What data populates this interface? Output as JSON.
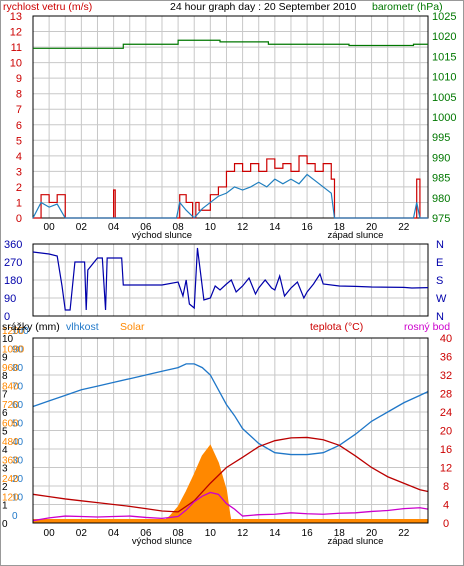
{
  "title": "24 hour graph day : 20 September 2010",
  "time_axis": {
    "hours_labeled": [
      "00",
      "02",
      "04",
      "06",
      "08",
      "10",
      "12",
      "14",
      "16",
      "18",
      "20",
      "22"
    ],
    "sunrise_label": "východ slunce",
    "sunset_label": "západ slunce",
    "sunrise_hour": 7.0,
    "sunset_hour": 19.0
  },
  "colors": {
    "wind": "#cc0000",
    "baro": "#007700",
    "gust_line": "#1f7fbf",
    "dir": "#0000aa",
    "humidity": "#1f77c8",
    "solar": "#ff8800",
    "temp": "#bb0000",
    "dew": "#cc00cc",
    "rain": "#ff8800",
    "frame": "#000000",
    "grid": "#c8c8c8"
  },
  "chart_data": [
    {
      "type": "line",
      "title": "24 hour graph day : 20 September 2010",
      "left_axis_label": "rychlost vetru (m/s)",
      "right_axis_label": "barometr (hPa)",
      "ylim_left": [
        0,
        13
      ],
      "yticks_left": [
        0,
        1,
        2,
        3,
        4,
        5,
        6,
        7,
        8,
        9,
        10,
        11,
        12,
        13
      ],
      "ylim_right": [
        975,
        1025
      ],
      "yticks_right": [
        975,
        980,
        985,
        990,
        995,
        1000,
        1005,
        1010,
        1015,
        1020,
        1025
      ],
      "x_range_hours": [
        -1,
        23.5
      ],
      "series": [
        {
          "kind": "wind_step",
          "x": [
            -1,
            -0.5,
            0,
            0.5,
            1,
            3.8,
            4,
            4.1,
            7.9,
            8.1,
            8.5,
            8.9,
            9.1,
            9.3,
            10,
            10.5,
            11,
            11.5,
            12,
            12.5,
            13,
            13.5,
            14,
            14.5,
            15,
            15.5,
            16,
            16.5,
            17,
            17.5,
            17.7,
            22.6,
            22.8,
            23,
            23.5
          ],
          "y": [
            0,
            1.5,
            1,
            1.5,
            0,
            0,
            1.8,
            0,
            0,
            1.5,
            1,
            0,
            1,
            0.5,
            1.5,
            2,
            3,
            3.5,
            3,
            3.5,
            3,
            3.8,
            3.2,
            3.5,
            3,
            4,
            3.5,
            3,
            3.5,
            2.5,
            0,
            0,
            2.5,
            0,
            0
          ]
        },
        {
          "kind": "mean_wind",
          "x": [
            -1,
            -0.5,
            0,
            0.5,
            1,
            4,
            7.9,
            8.1,
            8.5,
            9,
            9.5,
            10,
            10.5,
            11,
            11.5,
            12,
            12.5,
            13,
            13.5,
            14,
            14.5,
            15,
            15.5,
            16,
            16.5,
            17,
            17.5,
            17.7,
            22.6,
            22.8,
            23,
            23.5
          ],
          "y": [
            0,
            1,
            0.7,
            0.9,
            0,
            0,
            0,
            1,
            0.5,
            0,
            0.6,
            1,
            1.4,
            1.6,
            2,
            1.8,
            2,
            2.3,
            2,
            2.5,
            2.2,
            2.5,
            2.2,
            2.8,
            2.4,
            2,
            1.6,
            0,
            0,
            1,
            0,
            0
          ]
        },
        {
          "kind": "barometer",
          "x": [
            -1,
            4.5,
            4.6,
            7.9,
            8,
            10.5,
            10.6,
            13.5,
            13.6,
            18.5,
            18.6,
            22.5,
            22.6,
            23.5
          ],
          "y": [
            1017,
            1017,
            1018,
            1018,
            1019,
            1019,
            1018.6,
            1018.6,
            1018,
            1018,
            1017.7,
            1017.7,
            1018,
            1018
          ]
        }
      ]
    },
    {
      "type": "line",
      "title": "",
      "ylim": [
        0,
        360
      ],
      "yticks_left": [
        0,
        90,
        180,
        270,
        360
      ],
      "yticks_right": [
        "N",
        "W",
        "S",
        "E",
        "N"
      ],
      "x_range_hours": [
        -1,
        23.5
      ],
      "series": [
        {
          "kind": "wind_direction",
          "x": [
            -1,
            0,
            0.5,
            0.8,
            1,
            1.3,
            1.6,
            2.2,
            2.3,
            2.4,
            3,
            3.3,
            3.5,
            3.6,
            4.5,
            4.6,
            7,
            8,
            8.3,
            8.5,
            8.7,
            9,
            9.2,
            9.6,
            10,
            10.3,
            10.6,
            11,
            11.3,
            11.6,
            12,
            12.4,
            12.8,
            13,
            13.4,
            13.8,
            14,
            14.3,
            14.6,
            15,
            15.4,
            15.8,
            16,
            16.4,
            16.8,
            17,
            18,
            19,
            20,
            22,
            22.5,
            23.5
          ],
          "y": [
            320,
            310,
            300,
            150,
            30,
            30,
            270,
            270,
            30,
            230,
            290,
            290,
            30,
            290,
            290,
            155,
            155,
            170,
            100,
            180,
            60,
            40,
            340,
            80,
            90,
            150,
            130,
            160,
            180,
            120,
            150,
            190,
            110,
            140,
            180,
            140,
            130,
            200,
            100,
            140,
            170,
            90,
            120,
            160,
            210,
            160,
            150,
            148,
            145,
            143,
            140,
            142
          ]
        }
      ]
    },
    {
      "type": "line",
      "title": "",
      "legend_labels": [
        "srážky (mm)",
        "vlhkost",
        "Solar",
        "teplota (°C)",
        "rosný bod"
      ],
      "yticks_left_rain": [
        0,
        1,
        2,
        3,
        4,
        5,
        6,
        7,
        8,
        9,
        10
      ],
      "yticks_left_humidity": [
        0,
        10,
        20,
        30,
        40,
        50,
        60,
        70,
        80,
        90,
        100
      ],
      "yticks_left_solar": [
        0,
        120,
        240,
        360,
        480,
        600,
        720,
        840,
        960,
        1080,
        1200
      ],
      "yticks_right": [
        0,
        4,
        8,
        12,
        16,
        20,
        24,
        28,
        32,
        36,
        40
      ],
      "ylim_right": [
        0,
        40
      ],
      "x_range_hours": [
        -1,
        23.5
      ],
      "series": [
        {
          "kind": "humidity",
          "x": [
            -1,
            0,
            1,
            2,
            3,
            4,
            5,
            6,
            7,
            8,
            8.5,
            9,
            9.5,
            10,
            10.5,
            11,
            11.5,
            12,
            13,
            14,
            15,
            16,
            17,
            18,
            19,
            20,
            21,
            22,
            23,
            23.5
          ],
          "y": [
            63,
            66,
            69,
            72,
            74,
            76,
            78,
            80,
            82,
            84,
            86,
            86,
            84,
            80,
            72,
            64,
            58,
            51,
            43,
            38,
            37,
            37,
            38,
            42,
            48,
            55,
            60,
            65,
            69,
            71
          ]
        },
        {
          "kind": "temperature",
          "x": [
            -1,
            0,
            1,
            2,
            3,
            4,
            5,
            6,
            7,
            8,
            9,
            10,
            11,
            12,
            13,
            14,
            15,
            16,
            17,
            18,
            19,
            20,
            21,
            22,
            23,
            23.5
          ],
          "y": [
            6.2,
            5.7,
            5.2,
            4.8,
            4.4,
            4.0,
            3.6,
            3.1,
            2.6,
            2.4,
            4.8,
            8.6,
            12.0,
            14.2,
            16.5,
            17.8,
            18.4,
            18.5,
            18.0,
            16.8,
            14.5,
            12.0,
            10.0,
            8.6,
            7.2,
            6.8
          ]
        },
        {
          "kind": "dew_point",
          "x": [
            -1,
            0,
            1,
            2,
            3,
            4,
            5,
            6,
            7,
            8,
            8.5,
            9,
            9.5,
            10,
            10.5,
            11,
            11.5,
            12,
            13,
            14,
            15,
            16,
            17,
            18,
            19,
            20,
            21,
            22,
            23,
            23.5
          ],
          "y": [
            0.5,
            1.1,
            1.5,
            1.4,
            1.3,
            1.4,
            1.5,
            1.2,
            1.0,
            1.4,
            2.8,
            4.6,
            5.8,
            6.6,
            6.2,
            4.2,
            3.0,
            1.5,
            1.8,
            1.9,
            2.2,
            2.0,
            1.9,
            2.1,
            2.2,
            2.5,
            2.7,
            3.1,
            3.3,
            3.0
          ]
        },
        {
          "kind": "solar_temperature_scale",
          "x": [
            7.0,
            7.5,
            8.0,
            8.5,
            9.0,
            9.5,
            10.0,
            10.5,
            11.0,
            11.2,
            11.3
          ],
          "y": [
            0,
            1.5,
            3.5,
            6.8,
            10.5,
            14.5,
            16.8,
            13.0,
            7.0,
            2.0,
            0
          ]
        },
        {
          "kind": "rain_baseline",
          "segments_hours": [
            [
              -1,
              7.4
            ],
            [
              11.3,
              23.5
            ]
          ]
        }
      ]
    }
  ]
}
